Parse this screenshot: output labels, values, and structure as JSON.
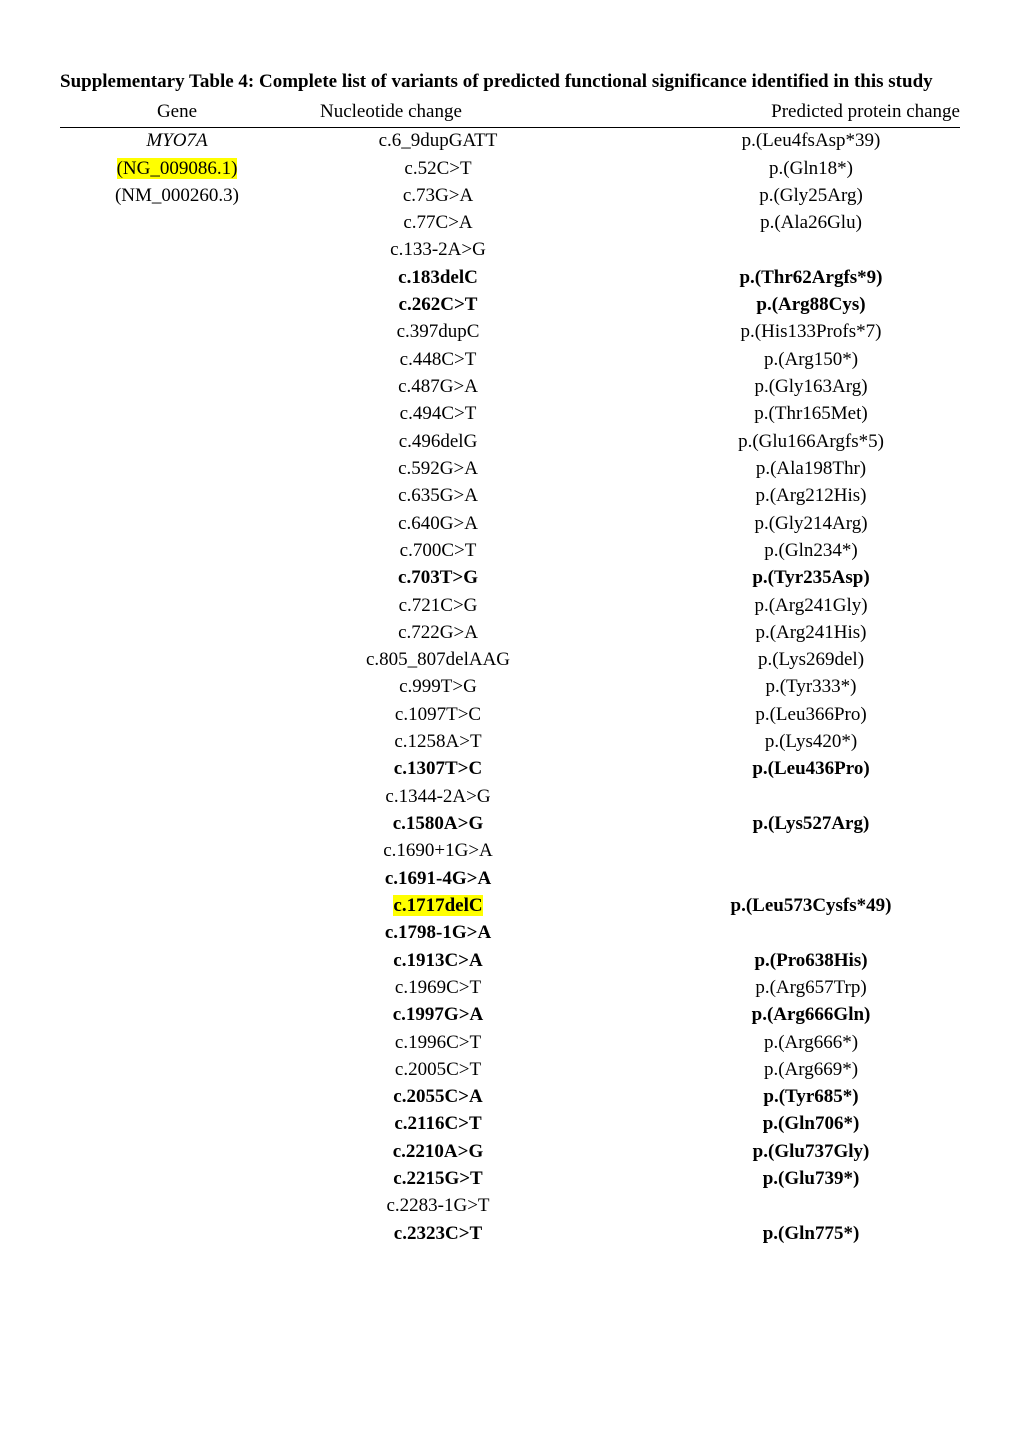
{
  "title": "Supplementary Table 4: Complete list of variants of predicted functional significance identified in this study",
  "columns": {
    "gene": "Gene",
    "nucleotide": "Nucleotide change",
    "protein": "Predicted protein change"
  },
  "rows": [
    {
      "gene": "MYO7A",
      "gene_style": "italic",
      "nuc": "c.6_9dupGATT",
      "nuc_style": "",
      "prot": "p.(Leu4fsAsp*39)",
      "prot_style": ""
    },
    {
      "gene": "(NG_009086.1)",
      "gene_style": "hl",
      "nuc": "c.52C>T",
      "nuc_style": "",
      "prot": "p.(Gln18*)",
      "prot_style": ""
    },
    {
      "gene": "(NM_000260.3)",
      "gene_style": "",
      "nuc": "c.73G>A",
      "nuc_style": "",
      "prot": "p.(Gly25Arg)",
      "prot_style": ""
    },
    {
      "gene": "",
      "gene_style": "",
      "nuc": "c.77C>A",
      "nuc_style": "",
      "prot": "p.(Ala26Glu)",
      "prot_style": ""
    },
    {
      "gene": "",
      "gene_style": "",
      "nuc": "c.133-2A>G",
      "nuc_style": "",
      "prot": "",
      "prot_style": ""
    },
    {
      "gene": "",
      "gene_style": "",
      "nuc": "c.183delC",
      "nuc_style": "bold",
      "prot": "p.(Thr62Argfs*9)",
      "prot_style": "bold"
    },
    {
      "gene": "",
      "gene_style": "",
      "nuc": "c.262C>T",
      "nuc_style": "bold",
      "prot": "p.(Arg88Cys)",
      "prot_style": "bold"
    },
    {
      "gene": "",
      "gene_style": "",
      "nuc": "c.397dupC",
      "nuc_style": "",
      "prot": "p.(His133Profs*7)",
      "prot_style": ""
    },
    {
      "gene": "",
      "gene_style": "",
      "nuc": "c.448C>T",
      "nuc_style": "",
      "prot": "p.(Arg150*)",
      "prot_style": ""
    },
    {
      "gene": "",
      "gene_style": "",
      "nuc": "c.487G>A",
      "nuc_style": "",
      "prot": "p.(Gly163Arg)",
      "prot_style": ""
    },
    {
      "gene": "",
      "gene_style": "",
      "nuc": "c.494C>T",
      "nuc_style": "",
      "prot": "p.(Thr165Met)",
      "prot_style": ""
    },
    {
      "gene": "",
      "gene_style": "",
      "nuc": "c.496delG",
      "nuc_style": "",
      "prot": "p.(Glu166Argfs*5)",
      "prot_style": ""
    },
    {
      "gene": "",
      "gene_style": "",
      "nuc": "c.592G>A",
      "nuc_style": "",
      "prot": "p.(Ala198Thr)",
      "prot_style": ""
    },
    {
      "gene": "",
      "gene_style": "",
      "nuc": "c.635G>A",
      "nuc_style": "",
      "prot": "p.(Arg212His)",
      "prot_style": ""
    },
    {
      "gene": "",
      "gene_style": "",
      "nuc": "c.640G>A",
      "nuc_style": "",
      "prot": "p.(Gly214Arg)",
      "prot_style": ""
    },
    {
      "gene": "",
      "gene_style": "",
      "nuc": "c.700C>T",
      "nuc_style": "",
      "prot": "p.(Gln234*)",
      "prot_style": ""
    },
    {
      "gene": "",
      "gene_style": "",
      "nuc": "c.703T>G",
      "nuc_style": "bold",
      "prot": "p.(Tyr235Asp)",
      "prot_style": "bold"
    },
    {
      "gene": "",
      "gene_style": "",
      "nuc": "c.721C>G",
      "nuc_style": "",
      "prot": "p.(Arg241Gly)",
      "prot_style": ""
    },
    {
      "gene": "",
      "gene_style": "",
      "nuc": "c.722G>A",
      "nuc_style": "",
      "prot": "p.(Arg241His)",
      "prot_style": ""
    },
    {
      "gene": "",
      "gene_style": "",
      "nuc": "c.805_807delAAG",
      "nuc_style": "",
      "prot": "p.(Lys269del)",
      "prot_style": ""
    },
    {
      "gene": "",
      "gene_style": "",
      "nuc": "c.999T>G",
      "nuc_style": "",
      "prot": "p.(Tyr333*)",
      "prot_style": ""
    },
    {
      "gene": "",
      "gene_style": "",
      "nuc": "c.1097T>C",
      "nuc_style": "",
      "prot": "p.(Leu366Pro)",
      "prot_style": ""
    },
    {
      "gene": "",
      "gene_style": "",
      "nuc": "c.1258A>T",
      "nuc_style": "",
      "prot": "p.(Lys420*)",
      "prot_style": ""
    },
    {
      "gene": "",
      "gene_style": "",
      "nuc": "c.1307T>C",
      "nuc_style": "bold",
      "prot": "p.(Leu436Pro)",
      "prot_style": "bold"
    },
    {
      "gene": "",
      "gene_style": "",
      "nuc": "c.1344-2A>G",
      "nuc_style": "",
      "prot": "",
      "prot_style": ""
    },
    {
      "gene": "",
      "gene_style": "",
      "nuc": "c.1580A>G",
      "nuc_style": "bold",
      "prot": "p.(Lys527Arg)",
      "prot_style": "bold"
    },
    {
      "gene": "",
      "gene_style": "",
      "nuc": "c.1690+1G>A",
      "nuc_style": "",
      "prot": "",
      "prot_style": ""
    },
    {
      "gene": "",
      "gene_style": "",
      "nuc": "c.1691-4G>A",
      "nuc_style": "bold",
      "prot": "",
      "prot_style": ""
    },
    {
      "gene": "",
      "gene_style": "",
      "nuc": "c.1717delC",
      "nuc_style": "bold hl",
      "prot": "p.(Leu573Cysfs*49)",
      "prot_style": "bold"
    },
    {
      "gene": "",
      "gene_style": "",
      "nuc": "c.1798-1G>A",
      "nuc_style": "bold",
      "prot": "",
      "prot_style": ""
    },
    {
      "gene": "",
      "gene_style": "",
      "nuc": "c.1913C>A",
      "nuc_style": "bold",
      "prot": "p.(Pro638His)",
      "prot_style": "bold"
    },
    {
      "gene": "",
      "gene_style": "",
      "nuc": "c.1969C>T",
      "nuc_style": "",
      "prot": "p.(Arg657Trp)",
      "prot_style": ""
    },
    {
      "gene": "",
      "gene_style": "",
      "nuc": "c.1997G>A",
      "nuc_style": "bold",
      "prot": "p.(Arg666Gln)",
      "prot_style": "bold"
    },
    {
      "gene": "",
      "gene_style": "",
      "nuc": "c.1996C>T",
      "nuc_style": "",
      "prot": "p.(Arg666*)",
      "prot_style": ""
    },
    {
      "gene": "",
      "gene_style": "",
      "nuc": "c.2005C>T",
      "nuc_style": "",
      "prot": "p.(Arg669*)",
      "prot_style": ""
    },
    {
      "gene": "",
      "gene_style": "",
      "nuc": "c.2055C>A",
      "nuc_style": "bold",
      "prot": "p.(Tyr685*)",
      "prot_style": "bold"
    },
    {
      "gene": "",
      "gene_style": "",
      "nuc": "c.2116C>T",
      "nuc_style": "bold",
      "prot": "p.(Gln706*)",
      "prot_style": "bold"
    },
    {
      "gene": "",
      "gene_style": "",
      "nuc": "c.2210A>G",
      "nuc_style": "bold",
      "prot": "p.(Glu737Gly)",
      "prot_style": "bold"
    },
    {
      "gene": "",
      "gene_style": "",
      "nuc": "c.2215G>T",
      "nuc_style": "bold",
      "prot": "p.(Glu739*)",
      "prot_style": "bold"
    },
    {
      "gene": "",
      "gene_style": "",
      "nuc": "c.2283-1G>T",
      "nuc_style": "",
      "prot": "",
      "prot_style": ""
    },
    {
      "gene": "",
      "gene_style": "",
      "nuc": "c.2323C>T",
      "nuc_style": "bold",
      "prot": "p.(Gln775*)",
      "prot_style": "bold"
    }
  ]
}
